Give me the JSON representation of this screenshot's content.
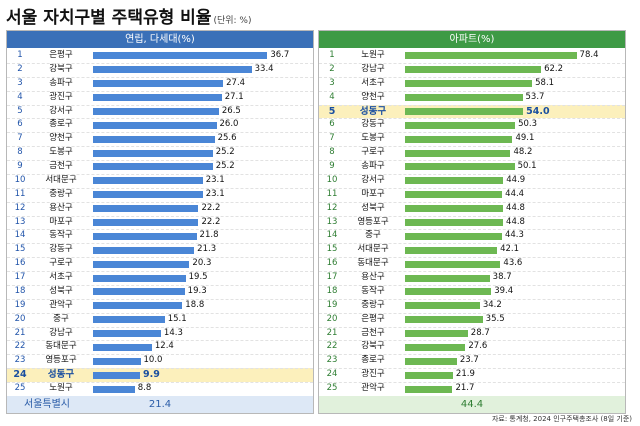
{
  "title": "서울 자치구별 주택유형 비율",
  "unit": "(단위: %)",
  "source": "자료: 통계청, 2024 인구주택총조사 (8일 기준)",
  "colors": {
    "left_bar": "#4a86d6",
    "right_bar": "#6db852",
    "highlight_row": "#fcf0bc"
  },
  "chart_data": [
    {
      "type": "bar",
      "title": "연립, 다세대(%)",
      "ranks": [
        "1",
        "2",
        "3",
        "4",
        "5",
        "6",
        "7",
        "8",
        "9",
        "10",
        "11",
        "12",
        "13",
        "14",
        "15",
        "16",
        "17",
        "18",
        "19",
        "20",
        "21",
        "22",
        "23",
        "24",
        "25"
      ],
      "categories": [
        "은평구",
        "강북구",
        "송파구",
        "광진구",
        "강서구",
        "종로구",
        "양천구",
        "도봉구",
        "금천구",
        "서대문구",
        "중랑구",
        "용산구",
        "마포구",
        "동작구",
        "강동구",
        "구로구",
        "서초구",
        "성북구",
        "관악구",
        "중구",
        "강남구",
        "동대문구",
        "영등포구",
        "성동구",
        "노원구"
      ],
      "values": [
        36.7,
        33.4,
        27.4,
        27.1,
        26.5,
        26.0,
        25.6,
        25.2,
        25.2,
        23.1,
        23.1,
        22.2,
        22.2,
        21.8,
        21.3,
        20.3,
        19.5,
        19.3,
        18.8,
        15.1,
        14.3,
        12.4,
        10.0,
        9.9,
        8.8
      ],
      "labels": [
        "36.7",
        "33.4",
        "27.4",
        "27.1",
        "26.5",
        "26.0",
        "25.6",
        "25.2",
        "25.2",
        "23.1",
        "23.1",
        "22.2",
        "22.2",
        "21.8",
        "21.3",
        "20.3",
        "19.5",
        "19.3",
        "18.8",
        "15.1",
        "14.3",
        "12.4",
        "10.0",
        "9.9",
        "8.8"
      ],
      "highlight_index": 23,
      "total_label": "서울특별시",
      "total_value": "21.4"
    },
    {
      "type": "bar",
      "title": "아파트(%)",
      "ranks": [
        "1",
        "2",
        "3",
        "4",
        "5",
        "6",
        "7",
        "8",
        "9",
        "10",
        "11",
        "12",
        "13",
        "14",
        "15",
        "16",
        "17",
        "18",
        "19",
        "20",
        "21",
        "22",
        "23",
        "24",
        "25"
      ],
      "categories": [
        "노원구",
        "강남구",
        "서초구",
        "양천구",
        "성동구",
        "강동구",
        "도봉구",
        "구로구",
        "송파구",
        "강서구",
        "마포구",
        "성북구",
        "영등포구",
        "중구",
        "서대문구",
        "동대문구",
        "용산구",
        "동작구",
        "중랑구",
        "은평구",
        "금천구",
        "강북구",
        "종로구",
        "광진구",
        "관악구"
      ],
      "values": [
        78.4,
        62.2,
        58.1,
        53.7,
        54.0,
        50.3,
        49.1,
        48.2,
        50.1,
        44.9,
        44.4,
        44.8,
        44.8,
        44.3,
        42.1,
        43.6,
        38.7,
        39.4,
        34.2,
        35.5,
        28.7,
        27.6,
        23.7,
        21.9,
        21.7
      ],
      "labels": [
        "78.4",
        "62.2",
        "58.1",
        "53.7",
        "54.0",
        "50.3",
        "49.1",
        "48.2",
        "50.1",
        "44.9",
        "44.4",
        "44.8",
        "44.8",
        "44.3",
        "42.1",
        "43.6",
        "38.7",
        "39.4",
        "34.2",
        "35.5",
        "28.7",
        "27.6",
        "23.7",
        "21.9",
        "21.7"
      ],
      "highlight_index": 4,
      "total_label": "",
      "total_value": "44.4"
    }
  ]
}
